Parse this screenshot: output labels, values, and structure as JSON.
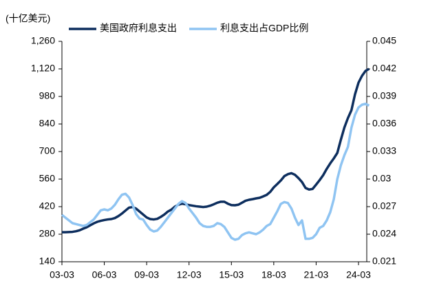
{
  "chart_data": {
    "type": "line",
    "unit_label": "(十亿美元)",
    "categories": [
      "03-03",
      null,
      null,
      null,
      null,
      null,
      null,
      null,
      null,
      null,
      null,
      null,
      "06-03",
      null,
      null,
      null,
      null,
      null,
      null,
      null,
      null,
      null,
      null,
      null,
      "09-03",
      null,
      null,
      null,
      null,
      null,
      null,
      null,
      null,
      null,
      null,
      null,
      "12-03",
      null,
      null,
      null,
      null,
      null,
      null,
      null,
      null,
      null,
      null,
      null,
      "15-03",
      null,
      null,
      null,
      null,
      null,
      null,
      null,
      null,
      null,
      null,
      null,
      "18-03",
      null,
      null,
      null,
      null,
      null,
      null,
      null,
      null,
      null,
      null,
      null,
      "21-03",
      null,
      null,
      null,
      null,
      null,
      null,
      null,
      null,
      null,
      null,
      null,
      "24-03",
      null,
      null,
      null
    ],
    "series": [
      {
        "name": "美国政府利息支出",
        "color": "#0d2e5e",
        "axis": "y",
        "values": [
          290,
          290,
          291,
          292,
          295,
          300,
          308,
          315,
          325,
          335,
          343,
          348,
          352,
          355,
          357,
          362,
          372,
          385,
          400,
          415,
          418,
          410,
          395,
          380,
          365,
          357,
          355,
          358,
          368,
          380,
          395,
          405,
          420,
          430,
          435,
          432,
          428,
          425,
          422,
          420,
          418,
          420,
          425,
          432,
          440,
          445,
          445,
          435,
          428,
          427,
          430,
          440,
          450,
          455,
          458,
          462,
          465,
          472,
          480,
          495,
          518,
          535,
          553,
          575,
          585,
          590,
          582,
          565,
          545,
          515,
          507,
          510,
          532,
          555,
          580,
          612,
          640,
          665,
          693,
          760,
          822,
          870,
          910,
          990,
          1050,
          1085,
          1110,
          1120
        ]
      },
      {
        "name": "利息支出占GDP比例",
        "color": "#8fc4f2",
        "axis": "y2",
        "values": [
          0.0261,
          0.0258,
          0.0255,
          0.0252,
          0.0251,
          0.025,
          0.0249,
          0.025,
          0.0253,
          0.0256,
          0.0261,
          0.0266,
          0.0267,
          0.0266,
          0.0268,
          0.0272,
          0.0278,
          0.0283,
          0.0284,
          0.028,
          0.0272,
          0.0262,
          0.0257,
          0.0256,
          0.025,
          0.0245,
          0.0243,
          0.0244,
          0.0248,
          0.0253,
          0.0258,
          0.0263,
          0.0268,
          0.0273,
          0.0276,
          0.0274,
          0.0268,
          0.0263,
          0.0258,
          0.0252,
          0.0249,
          0.0248,
          0.0248,
          0.0249,
          0.0252,
          0.0251,
          0.0248,
          0.0242,
          0.0236,
          0.0234,
          0.0235,
          0.0239,
          0.0241,
          0.0242,
          0.0241,
          0.024,
          0.0242,
          0.0245,
          0.0249,
          0.0251,
          0.0258,
          0.0265,
          0.0273,
          0.0275,
          0.0274,
          0.0268,
          0.0258,
          0.025,
          0.0255,
          0.0235,
          0.0235,
          0.0236,
          0.024,
          0.0247,
          0.0249,
          0.0255,
          0.0264,
          0.0278,
          0.03,
          0.0315,
          0.0326,
          0.0335,
          0.0356,
          0.037,
          0.0378,
          0.0381,
          0.0382,
          0.038
        ]
      }
    ],
    "ylim": [
      140,
      1260
    ],
    "yticks": [
      140,
      280,
      420,
      560,
      700,
      840,
      980,
      {
        "value": 1120,
        "label": "1,120"
      },
      {
        "value": 1260,
        "label": "1,260"
      }
    ],
    "y2lim": [
      0.021,
      0.045
    ],
    "y2ticks": [
      0.021,
      0.024,
      0.027,
      0.03,
      0.033,
      0.036,
      0.039,
      0.042,
      0.045
    ],
    "legend": "top"
  }
}
